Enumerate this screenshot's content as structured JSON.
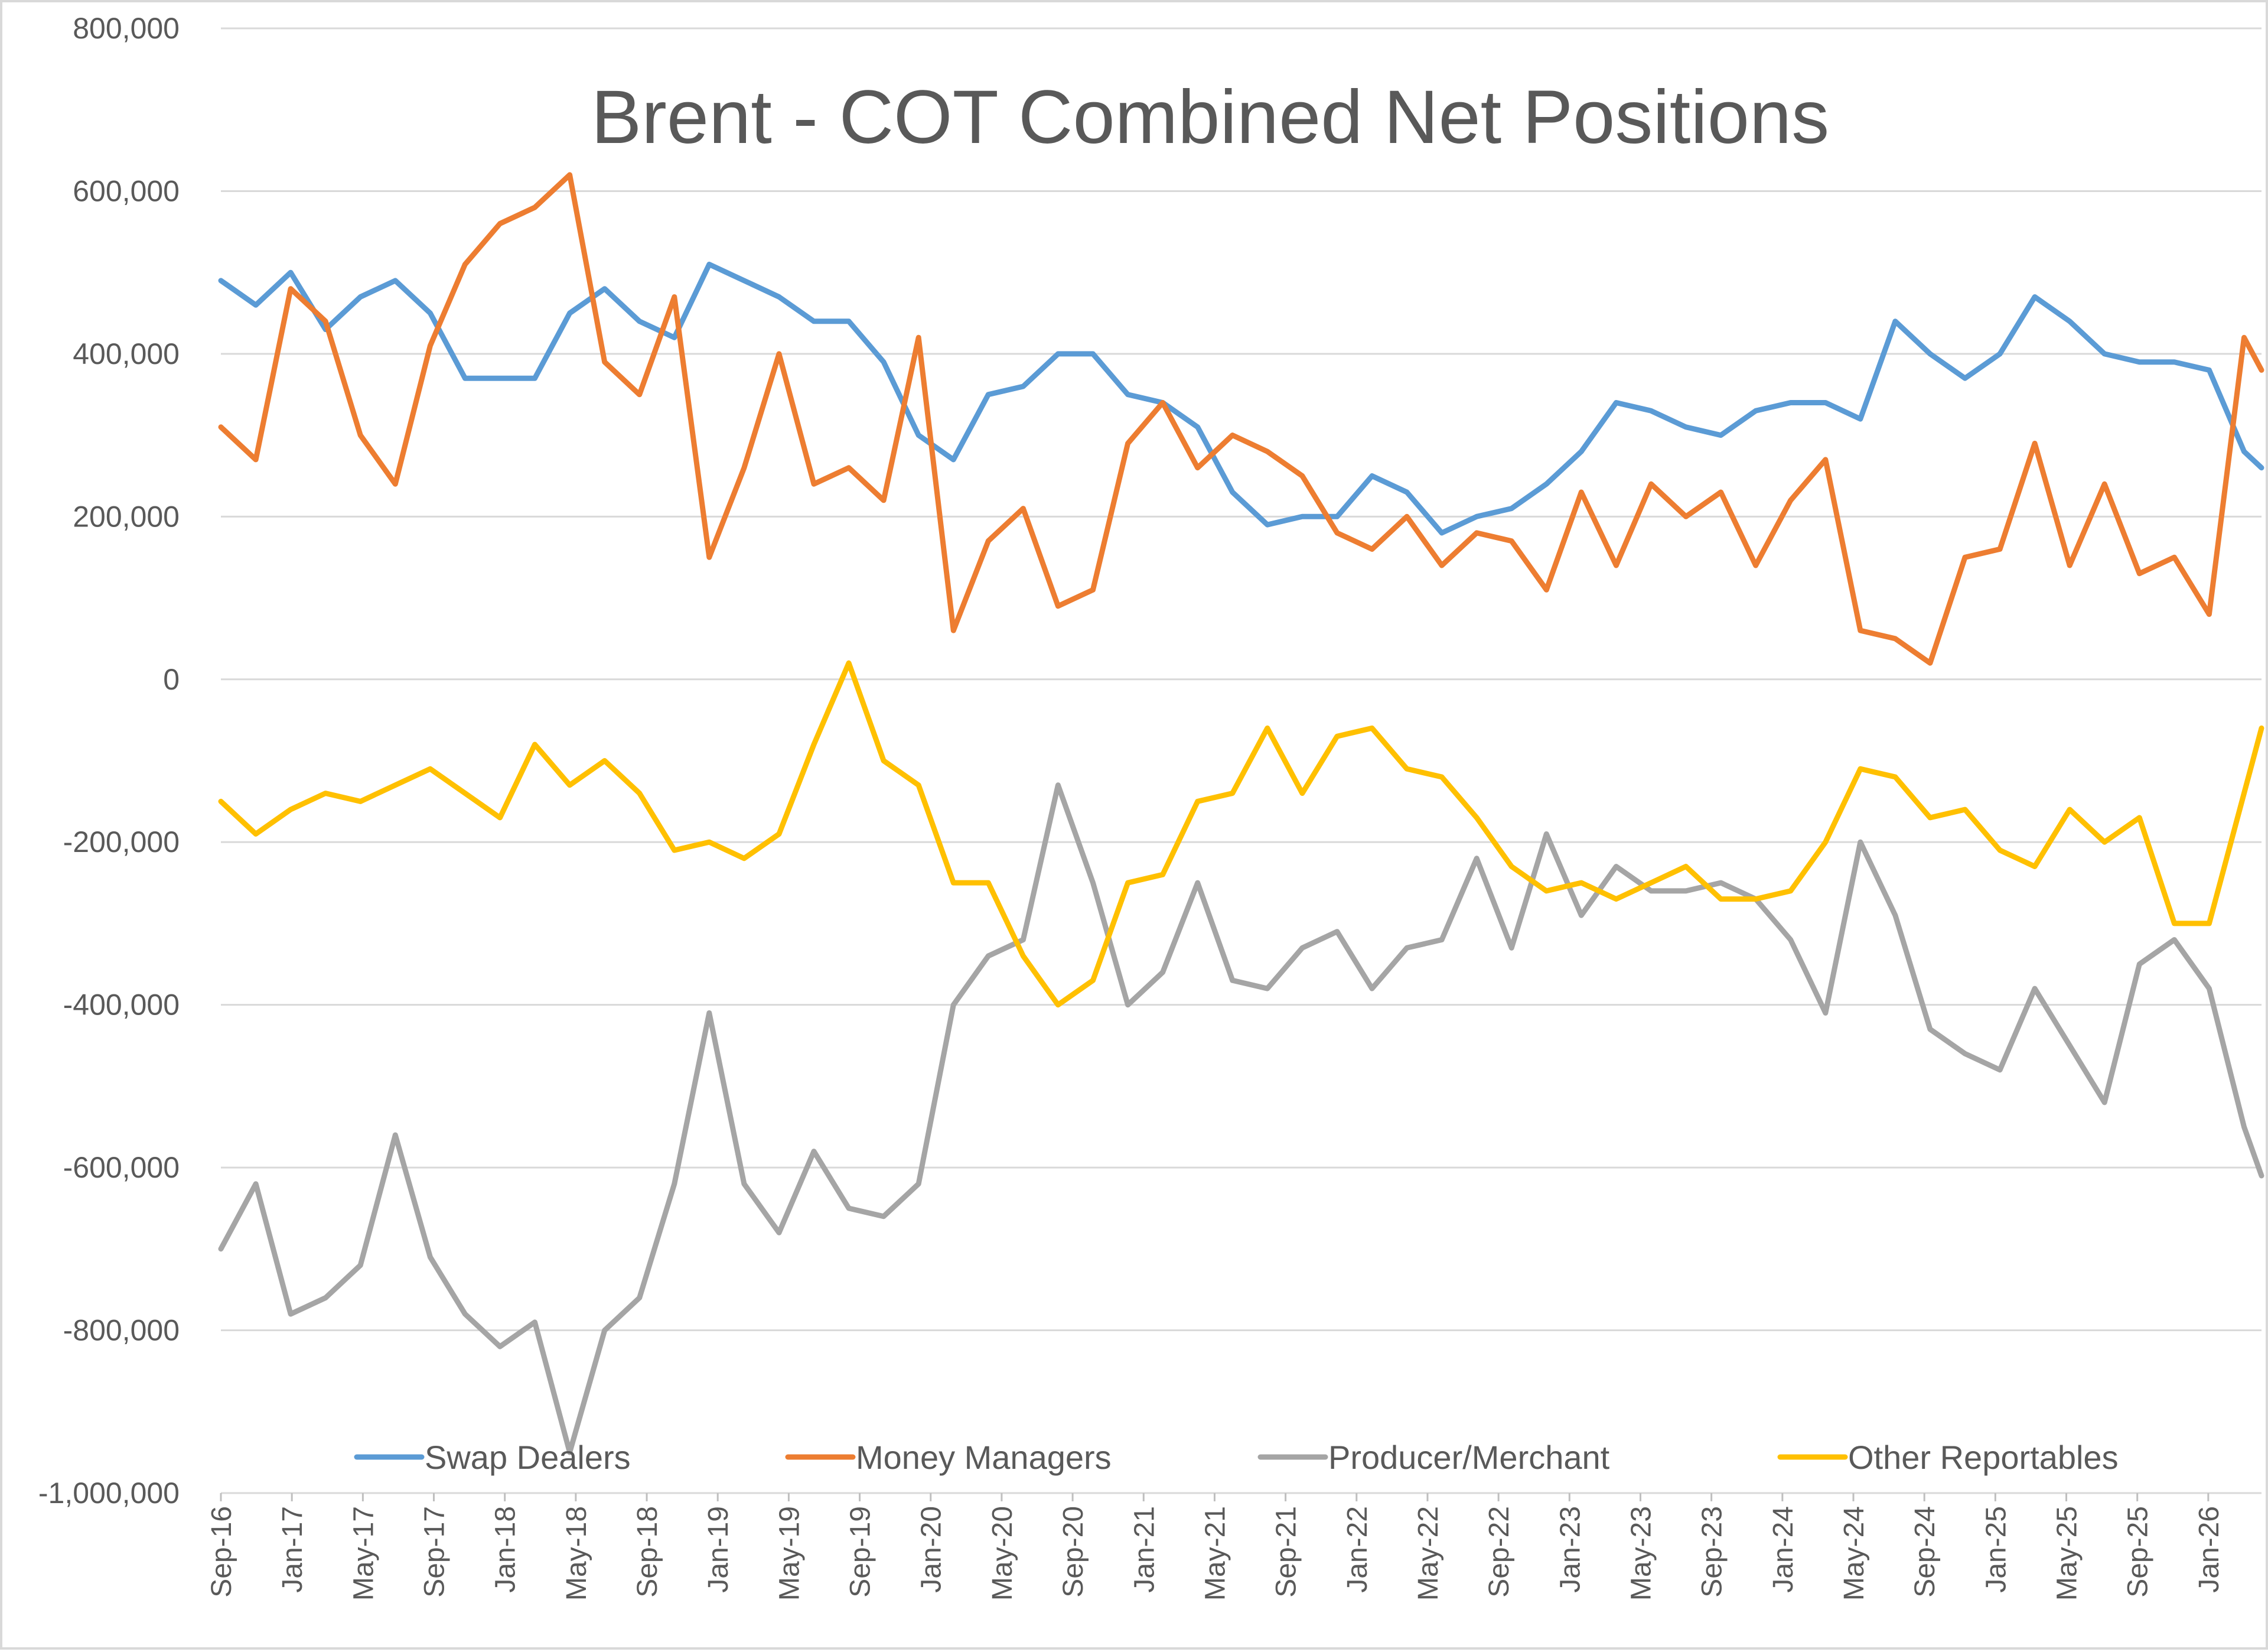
{
  "chart_data": {
    "type": "line",
    "title": "Brent - COT Combined Net Positions",
    "xlabel": "",
    "ylabel": "",
    "ylim": [
      -1000000,
      800000
    ],
    "yticks": [
      {
        "value": 800000,
        "label": "800,000"
      },
      {
        "value": 600000,
        "label": "600,000"
      },
      {
        "value": 400000,
        "label": "400,000"
      },
      {
        "value": 200000,
        "label": "200,000"
      },
      {
        "value": 0,
        "label": "0"
      },
      {
        "value": -200000,
        "label": "-200,000"
      },
      {
        "value": -400000,
        "label": "-400,000"
      },
      {
        "value": -600000,
        "label": "-600,000"
      },
      {
        "value": -800000,
        "label": "-800,000"
      },
      {
        "value": -1000000,
        "label": "-1,000,000"
      }
    ],
    "x_tick_labels": [
      "Sep-16",
      "Jan-17",
      "May-17",
      "Sep-17",
      "Jan-18",
      "May-18",
      "Sep-18",
      "Jan-19",
      "May-19",
      "Sep-19",
      "Jan-20",
      "May-20",
      "Sep-20",
      "Jan-21",
      "May-21",
      "Sep-21",
      "Jan-22",
      "May-22",
      "Sep-22",
      "Jan-23",
      "May-23",
      "Sep-23",
      "Jan-24",
      "May-24",
      "Sep-24",
      "Jan-25",
      "May-25",
      "Sep-25",
      "Jan-26"
    ],
    "x_end": "Jun-26",
    "grid": true,
    "legend_position": "bottom",
    "series": [
      {
        "name": "Swap Dealers",
        "color": "#5b9bd5",
        "x": [
          "2016-09",
          "2016-11",
          "2017-01",
          "2017-03",
          "2017-05",
          "2017-07",
          "2017-09",
          "2017-11",
          "2018-01",
          "2018-03",
          "2018-05",
          "2018-07",
          "2018-09",
          "2018-11",
          "2019-01",
          "2019-03",
          "2019-05",
          "2019-07",
          "2019-09",
          "2019-11",
          "2020-01",
          "2020-03",
          "2020-05",
          "2020-07",
          "2020-09",
          "2020-11",
          "2021-01",
          "2021-03",
          "2021-05",
          "2021-07",
          "2021-09",
          "2021-11",
          "2022-01",
          "2022-03",
          "2022-05",
          "2022-07",
          "2022-09",
          "2022-11",
          "2023-01",
          "2023-03",
          "2023-05",
          "2023-07",
          "2023-09",
          "2023-11",
          "2024-01",
          "2024-03",
          "2024-05",
          "2024-07",
          "2024-09",
          "2024-11",
          "2025-01",
          "2025-03",
          "2025-05",
          "2025-07",
          "2025-09",
          "2025-11",
          "2026-01",
          "2026-03",
          "2026-05",
          "2026-06"
        ],
        "values": [
          490000,
          460000,
          500000,
          430000,
          470000,
          490000,
          450000,
          370000,
          370000,
          370000,
          450000,
          480000,
          440000,
          420000,
          510000,
          490000,
          470000,
          440000,
          440000,
          390000,
          300000,
          270000,
          350000,
          360000,
          400000,
          400000,
          350000,
          340000,
          310000,
          230000,
          190000,
          200000,
          200000,
          250000,
          230000,
          180000,
          200000,
          210000,
          240000,
          280000,
          340000,
          330000,
          310000,
          300000,
          330000,
          340000,
          340000,
          320000,
          440000,
          400000,
          370000,
          400000,
          470000,
          440000,
          400000,
          390000,
          390000,
          380000,
          280000,
          260000
        ]
      },
      {
        "name": "Money Managers",
        "color": "#ed7d31",
        "x": [
          "2016-09",
          "2016-11",
          "2017-01",
          "2017-03",
          "2017-05",
          "2017-07",
          "2017-09",
          "2017-11",
          "2018-01",
          "2018-03",
          "2018-05",
          "2018-07",
          "2018-09",
          "2018-11",
          "2019-01",
          "2019-03",
          "2019-05",
          "2019-07",
          "2019-09",
          "2019-11",
          "2020-01",
          "2020-03",
          "2020-05",
          "2020-07",
          "2020-09",
          "2020-11",
          "2021-01",
          "2021-03",
          "2021-05",
          "2021-07",
          "2021-09",
          "2021-11",
          "2022-01",
          "2022-03",
          "2022-05",
          "2022-07",
          "2022-09",
          "2022-11",
          "2023-01",
          "2023-03",
          "2023-05",
          "2023-07",
          "2023-09",
          "2023-11",
          "2024-01",
          "2024-03",
          "2024-05",
          "2024-07",
          "2024-09",
          "2024-11",
          "2025-01",
          "2025-03",
          "2025-05",
          "2025-07",
          "2025-09",
          "2025-11",
          "2026-01",
          "2026-03",
          "2026-05",
          "2026-06"
        ],
        "values": [
          310000,
          270000,
          480000,
          440000,
          300000,
          240000,
          410000,
          510000,
          560000,
          580000,
          620000,
          390000,
          350000,
          470000,
          150000,
          260000,
          400000,
          240000,
          260000,
          220000,
          420000,
          60000,
          170000,
          210000,
          90000,
          110000,
          290000,
          340000,
          260000,
          300000,
          280000,
          250000,
          180000,
          160000,
          200000,
          140000,
          180000,
          170000,
          110000,
          230000,
          140000,
          240000,
          200000,
          230000,
          140000,
          220000,
          270000,
          60000,
          50000,
          20000,
          150000,
          160000,
          290000,
          140000,
          240000,
          130000,
          150000,
          80000,
          420000,
          380000
        ]
      },
      {
        "name": "Producer/Merchant",
        "color": "#a5a5a5",
        "x": [
          "2016-09",
          "2016-11",
          "2017-01",
          "2017-03",
          "2017-05",
          "2017-07",
          "2017-09",
          "2017-11",
          "2018-01",
          "2018-03",
          "2018-05",
          "2018-07",
          "2018-09",
          "2018-11",
          "2019-01",
          "2019-03",
          "2019-05",
          "2019-07",
          "2019-09",
          "2019-11",
          "2020-01",
          "2020-03",
          "2020-05",
          "2020-07",
          "2020-09",
          "2020-11",
          "2021-01",
          "2021-03",
          "2021-05",
          "2021-07",
          "2021-09",
          "2021-11",
          "2022-01",
          "2022-03",
          "2022-05",
          "2022-07",
          "2022-09",
          "2022-11",
          "2023-01",
          "2023-03",
          "2023-05",
          "2023-07",
          "2023-09",
          "2023-11",
          "2024-01",
          "2024-03",
          "2024-05",
          "2024-07",
          "2024-09",
          "2024-11",
          "2025-01",
          "2025-03",
          "2025-05",
          "2025-07",
          "2025-09",
          "2025-11",
          "2026-01",
          "2026-03",
          "2026-05",
          "2026-06"
        ],
        "values": [
          -700000,
          -620000,
          -780000,
          -760000,
          -720000,
          -560000,
          -710000,
          -780000,
          -820000,
          -790000,
          -950000,
          -800000,
          -760000,
          -620000,
          -410000,
          -620000,
          -680000,
          -580000,
          -650000,
          -660000,
          -620000,
          -400000,
          -340000,
          -320000,
          -130000,
          -250000,
          -400000,
          -360000,
          -250000,
          -370000,
          -380000,
          -330000,
          -310000,
          -380000,
          -330000,
          -320000,
          -220000,
          -330000,
          -190000,
          -290000,
          -230000,
          -260000,
          -260000,
          -250000,
          -270000,
          -320000,
          -410000,
          -200000,
          -290000,
          -430000,
          -460000,
          -480000,
          -380000,
          -450000,
          -520000,
          -350000,
          -320000,
          -380000,
          -550000,
          -610000
        ]
      },
      {
        "name": "Other Reportables",
        "color": "#ffc000",
        "x": [
          "2016-09",
          "2016-11",
          "2017-01",
          "2017-03",
          "2017-05",
          "2017-07",
          "2017-09",
          "2017-11",
          "2018-01",
          "2018-03",
          "2018-05",
          "2018-07",
          "2018-09",
          "2018-11",
          "2019-01",
          "2019-03",
          "2019-05",
          "2019-07",
          "2019-09",
          "2019-11",
          "2020-01",
          "2020-03",
          "2020-05",
          "2020-07",
          "2020-09",
          "2020-11",
          "2021-01",
          "2021-03",
          "2021-05",
          "2021-07",
          "2021-09",
          "2021-11",
          "2022-01",
          "2022-03",
          "2022-05",
          "2022-07",
          "2022-09",
          "2022-11",
          "2023-01",
          "2023-03",
          "2023-05",
          "2023-07",
          "2023-09",
          "2023-11",
          "2024-01",
          "2024-03",
          "2024-05",
          "2024-07",
          "2024-09",
          "2024-11",
          "2025-01",
          "2025-03",
          "2025-05",
          "2025-07",
          "2025-09",
          "2025-11",
          "2026-01",
          "2026-03",
          "2026-05",
          "2026-06"
        ],
        "values": [
          -150000,
          -190000,
          -160000,
          -140000,
          -150000,
          -130000,
          -110000,
          -140000,
          -170000,
          -80000,
          -130000,
          -100000,
          -140000,
          -210000,
          -200000,
          -220000,
          -190000,
          -80000,
          20000,
          -100000,
          -130000,
          -250000,
          -250000,
          -340000,
          -400000,
          -370000,
          -250000,
          -240000,
          -150000,
          -140000,
          -60000,
          -140000,
          -70000,
          -60000,
          -110000,
          -120000,
          -170000,
          -230000,
          -260000,
          -250000,
          -270000,
          -250000,
          -230000,
          -270000,
          -270000,
          -260000,
          -200000,
          -110000,
          -120000,
          -170000,
          -160000,
          -210000,
          -230000,
          -160000,
          -200000,
          -170000,
          -300000,
          -300000,
          -140000,
          -60000
        ]
      }
    ]
  }
}
